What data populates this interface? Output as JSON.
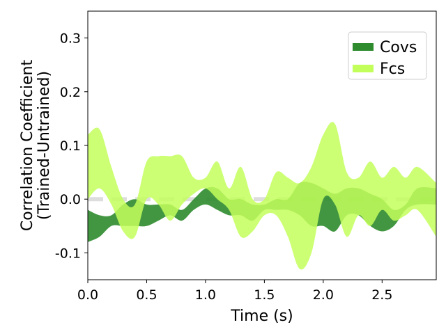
{
  "chart_data": {
    "type": "area",
    "title": "",
    "xlabel": "Time (s)",
    "ylabel_lines": [
      "Correlation Coefficient",
      "(Trained-Untrained)"
    ],
    "xlim": [
      0,
      2.96
    ],
    "ylim": [
      -0.15,
      0.35
    ],
    "x_ticks": [
      0.0,
      0.5,
      1.0,
      1.5,
      2.0,
      2.5
    ],
    "x_tick_labels": [
      "0.0",
      "0.5",
      "1.0",
      "1.5",
      "2.0",
      "2.5"
    ],
    "y_ticks": [
      -0.1,
      0.0,
      0.1,
      0.2,
      0.3
    ],
    "y_tick_labels": [
      "-0.1",
      "0.0",
      "0.1",
      "0.2",
      "0.3"
    ],
    "reference_line": {
      "y": 0.0,
      "style": "dashed",
      "color": "#dddddd"
    },
    "legend": {
      "placement": "top-right"
    },
    "x": [
      0.0,
      0.1,
      0.2,
      0.3,
      0.4,
      0.5,
      0.6,
      0.7,
      0.8,
      0.9,
      1.0,
      1.1,
      1.2,
      1.3,
      1.4,
      1.5,
      1.6,
      1.7,
      1.8,
      1.9,
      2.0,
      2.1,
      2.2,
      2.3,
      2.4,
      2.5,
      2.6,
      2.7,
      2.8,
      2.96
    ],
    "series": [
      {
        "name": "Covs",
        "color": "#2e8b2e",
        "upper": [
          -0.02,
          -0.03,
          -0.03,
          -0.01,
          0.0,
          -0.01,
          -0.01,
          -0.01,
          -0.02,
          0.0,
          0.02,
          0.02,
          0.0,
          0.0,
          -0.01,
          -0.01,
          0.0,
          0.0,
          0.03,
          0.03,
          0.02,
          0.01,
          0.02,
          0.02,
          0.01,
          0.0,
          -0.02,
          -0.01,
          0.02,
          0.02
        ],
        "lower": [
          -0.08,
          -0.07,
          -0.05,
          -0.05,
          -0.05,
          -0.05,
          -0.04,
          -0.03,
          -0.04,
          -0.02,
          -0.01,
          -0.02,
          -0.03,
          -0.03,
          -0.04,
          -0.02,
          -0.02,
          -0.02,
          -0.03,
          -0.05,
          -0.05,
          -0.06,
          -0.03,
          -0.03,
          -0.05,
          -0.06,
          -0.05,
          -0.02,
          -0.01,
          -0.01
        ]
      },
      {
        "name": "Fcs",
        "color": "#c3ff5a",
        "upper": [
          0.12,
          0.13,
          0.06,
          0.0,
          -0.01,
          0.07,
          0.08,
          0.08,
          0.08,
          0.04,
          0.04,
          0.07,
          0.02,
          0.06,
          0.0,
          0.0,
          0.05,
          0.04,
          0.03,
          0.06,
          0.12,
          0.14,
          0.05,
          0.04,
          0.07,
          0.04,
          0.06,
          0.04,
          0.06,
          0.03
        ],
        "lower": [
          0.0,
          0.02,
          -0.01,
          -0.06,
          -0.07,
          0.0,
          -0.01,
          -0.04,
          -0.01,
          0.01,
          0.02,
          0.0,
          -0.02,
          -0.07,
          -0.06,
          -0.03,
          -0.03,
          -0.07,
          -0.13,
          -0.1,
          0.0,
          -0.01,
          -0.07,
          -0.03,
          -0.05,
          -0.02,
          -0.04,
          -0.03,
          -0.02,
          -0.07
        ]
      }
    ]
  }
}
